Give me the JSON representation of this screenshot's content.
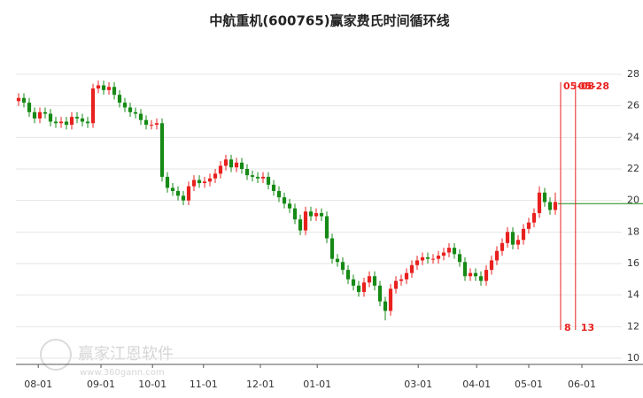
{
  "chart_data": {
    "type": "candlestick",
    "title": "中航重机(600765)赢家费氏时间循环线",
    "up_color": "#e8211f",
    "down_color": "#168a16",
    "open": [
      26.3,
      26.5,
      26.2,
      25.6,
      25.2,
      25.6,
      25.5,
      25.0,
      24.9,
      25.0,
      24.8,
      25.3,
      25.2,
      25.0,
      24.9,
      27.1,
      27.3,
      27.0,
      27.2,
      26.7,
      26.2,
      25.9,
      25.6,
      25.5,
      25.1,
      24.8,
      24.8,
      24.9,
      21.5,
      20.8,
      20.6,
      20.3,
      20.0,
      20.9,
      21.3,
      21.1,
      21.2,
      21.4,
      21.7,
      22.2,
      22.6,
      22.1,
      22.4,
      22.0,
      21.6,
      21.5,
      21.4,
      21.5,
      21.0,
      20.6,
      20.2,
      19.8,
      19.5,
      18.8,
      18.1,
      19.3,
      19.0,
      19.2,
      19.0,
      17.6,
      16.3,
      16.1,
      15.6,
      15.0,
      14.6,
      14.2,
      14.8,
      15.2,
      14.6,
      13.6,
      13.0,
      14.4,
      14.9,
      15.0,
      15.4,
      15.9,
      16.2,
      16.4,
      16.3,
      16.3,
      16.5,
      16.7,
      17.0,
      16.6,
      16.1,
      15.2,
      15.4,
      15.2,
      14.9,
      15.6,
      16.2,
      16.8,
      17.3,
      18.0,
      17.2,
      17.5,
      18.2,
      18.6,
      19.2,
      20.5,
      19.9,
      19.4
    ],
    "high": [
      26.8,
      26.8,
      26.5,
      25.9,
      25.9,
      25.9,
      25.8,
      25.3,
      25.3,
      25.3,
      25.6,
      25.6,
      25.5,
      25.3,
      27.4,
      27.6,
      27.6,
      27.5,
      27.5,
      27.0,
      26.5,
      26.2,
      25.9,
      25.8,
      25.4,
      25.1,
      25.2,
      25.2,
      21.8,
      21.1,
      20.9,
      20.6,
      21.2,
      21.6,
      21.6,
      21.5,
      21.7,
      22.0,
      22.5,
      22.9,
      22.9,
      22.7,
      22.7,
      22.3,
      21.9,
      21.8,
      21.8,
      21.8,
      21.3,
      20.9,
      20.5,
      20.1,
      19.8,
      19.1,
      19.6,
      19.6,
      19.5,
      19.5,
      19.3,
      17.9,
      16.6,
      16.4,
      15.9,
      15.3,
      14.9,
      15.1,
      15.5,
      15.5,
      14.9,
      13.9,
      14.7,
      15.2,
      15.3,
      15.7,
      16.2,
      16.5,
      16.7,
      16.7,
      16.6,
      16.8,
      17.0,
      17.3,
      17.3,
      16.9,
      16.4,
      15.7,
      15.7,
      15.5,
      15.9,
      16.5,
      17.1,
      17.6,
      18.3,
      18.3,
      17.8,
      18.5,
      18.9,
      19.5,
      20.9,
      20.8,
      20.2,
      20.5
    ],
    "low": [
      26.0,
      25.9,
      25.3,
      24.9,
      24.9,
      25.2,
      24.7,
      24.6,
      24.6,
      24.5,
      24.5,
      24.9,
      24.7,
      24.6,
      24.6,
      26.8,
      26.7,
      26.7,
      26.4,
      25.9,
      25.6,
      25.3,
      25.2,
      24.8,
      24.5,
      24.5,
      24.5,
      21.2,
      20.5,
      20.3,
      20.0,
      19.7,
      19.7,
      20.6,
      20.8,
      20.8,
      20.9,
      21.1,
      21.4,
      21.9,
      21.8,
      21.8,
      21.7,
      21.3,
      21.2,
      21.1,
      21.1,
      20.7,
      20.3,
      19.9,
      19.5,
      19.2,
      18.5,
      17.8,
      17.8,
      18.7,
      18.7,
      18.7,
      17.3,
      16.0,
      15.8,
      15.3,
      14.7,
      14.3,
      13.9,
      13.9,
      14.5,
      14.3,
      13.3,
      12.4,
      12.7,
      14.1,
      14.6,
      14.7,
      15.1,
      15.6,
      15.9,
      16.0,
      16.0,
      16.0,
      16.2,
      16.4,
      16.3,
      15.8,
      14.9,
      14.9,
      14.9,
      14.6,
      14.6,
      15.3,
      15.9,
      16.5,
      17.0,
      16.9,
      16.9,
      17.2,
      17.9,
      18.3,
      18.9,
      19.6,
      19.1,
      19.1
    ],
    "close": [
      26.5,
      26.2,
      25.6,
      25.2,
      25.6,
      25.5,
      25.0,
      24.9,
      25.0,
      24.8,
      25.3,
      25.2,
      25.0,
      24.9,
      27.1,
      27.3,
      27.0,
      27.2,
      26.7,
      26.2,
      25.9,
      25.6,
      25.5,
      25.1,
      24.8,
      24.8,
      24.9,
      21.5,
      20.8,
      20.6,
      20.3,
      20.0,
      20.9,
      21.3,
      21.1,
      21.2,
      21.4,
      21.7,
      22.2,
      22.6,
      22.1,
      22.4,
      22.0,
      21.6,
      21.5,
      21.4,
      21.5,
      21.0,
      20.6,
      20.2,
      19.8,
      19.5,
      18.8,
      18.1,
      19.3,
      19.0,
      19.2,
      19.0,
      17.6,
      16.3,
      16.1,
      15.6,
      15.0,
      14.6,
      14.2,
      14.8,
      15.2,
      14.6,
      13.6,
      13.0,
      14.4,
      14.9,
      15.0,
      15.4,
      15.9,
      16.2,
      16.4,
      16.3,
      16.3,
      16.5,
      16.7,
      17.0,
      16.6,
      16.1,
      15.2,
      15.4,
      15.2,
      14.9,
      15.6,
      16.2,
      16.8,
      17.3,
      18.0,
      17.2,
      17.5,
      18.2,
      18.6,
      19.2,
      20.5,
      19.9,
      19.4,
      19.9
    ],
    "xlim": [
      0,
      114
    ],
    "xticks": [
      {
        "value": 4.2,
        "label": "08-01"
      },
      {
        "value": 16,
        "label": "09-01"
      },
      {
        "value": 25.7,
        "label": "10-01"
      },
      {
        "value": 35.3,
        "label": "11-01"
      },
      {
        "value": 46,
        "label": "12-01"
      },
      {
        "value": 56.7,
        "label": "01-01"
      },
      {
        "value": 75.7,
        "label": "03-01"
      },
      {
        "value": 86.7,
        "label": "04-01"
      },
      {
        "value": 96.5,
        "label": "05-01"
      },
      {
        "value": 106.5,
        "label": "06-01"
      }
    ],
    "ylim": [
      10,
      28
    ],
    "yticks": [
      10,
      12,
      14,
      16,
      18,
      20,
      22,
      24,
      26,
      28
    ],
    "grid": true,
    "cycle_lines": [
      {
        "x": 102.5,
        "date": "05-08",
        "count": 8
      },
      {
        "x": 105.3,
        "date": "05-28",
        "count": 13
      }
    ],
    "cycle_color": "#e8211f",
    "level_line": {
      "value": 19.8,
      "color": "#168a16"
    },
    "watermark": {
      "name": "赢家江恩软件",
      "url": "www.360gann.com"
    }
  }
}
